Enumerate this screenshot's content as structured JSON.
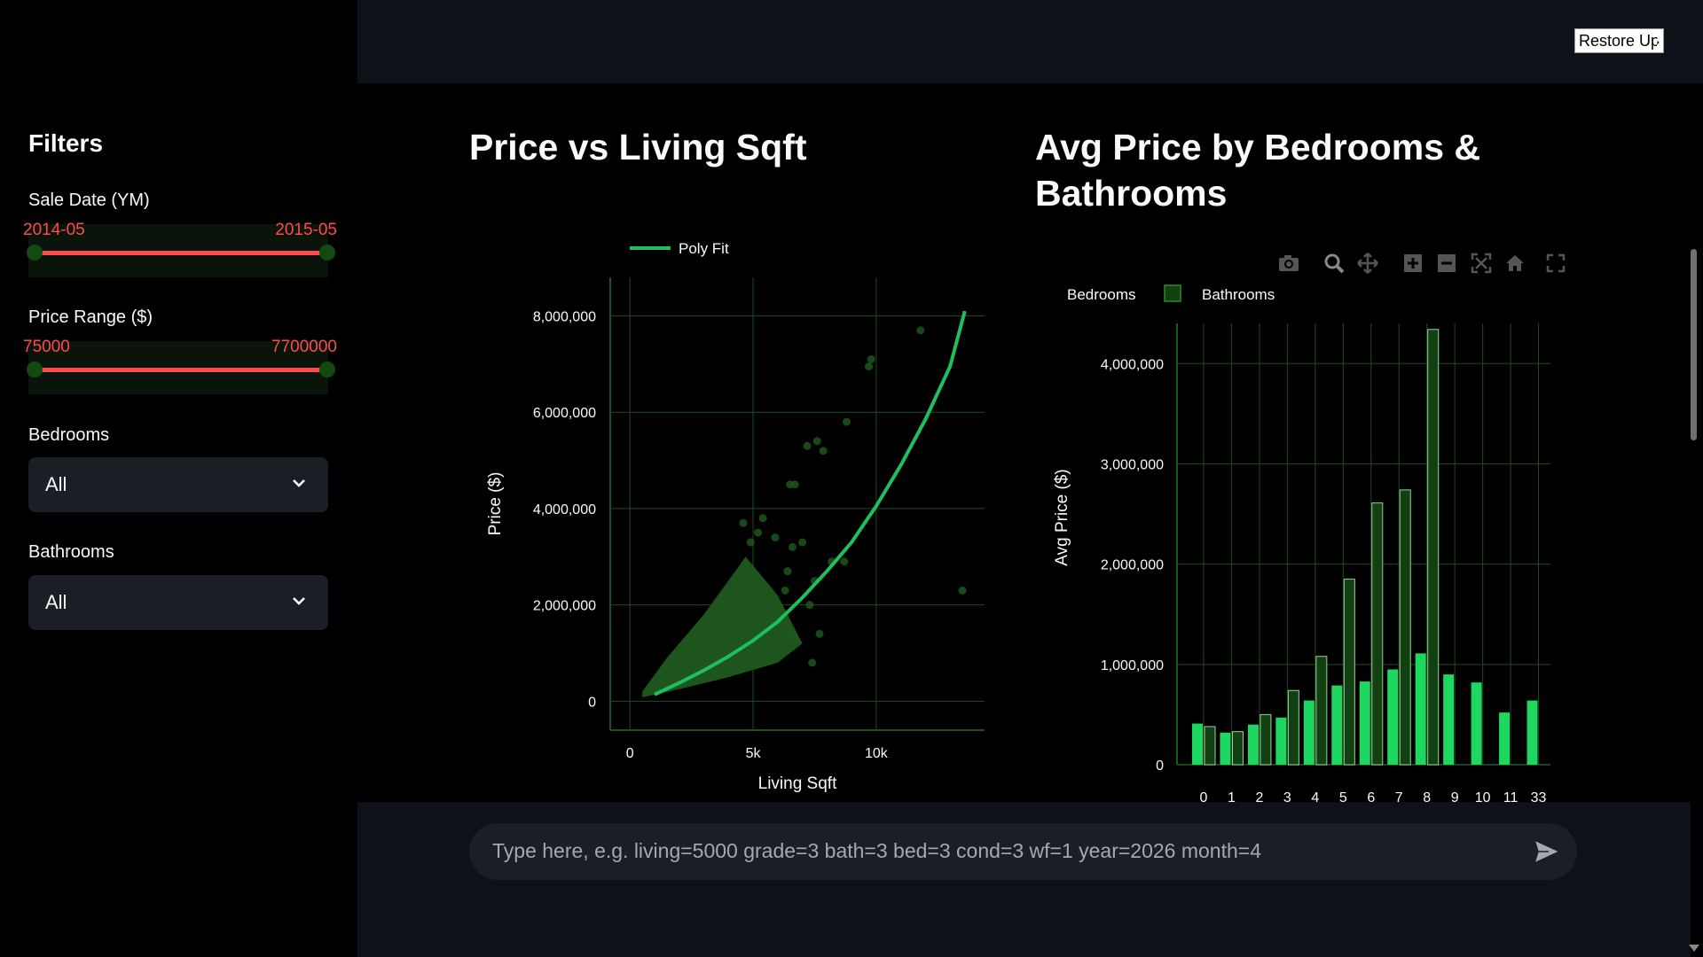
{
  "header": {
    "restore_label": "Restore Up"
  },
  "sidebar": {
    "title": "Filters",
    "sale_date": {
      "label": "Sale Date (YM)",
      "min": "2014-05",
      "max": "2015-05"
    },
    "price_range": {
      "label": "Price Range ($)",
      "min": "75000",
      "max": "7700000"
    },
    "bedrooms": {
      "label": "Bedrooms",
      "value": "All"
    },
    "bathrooms": {
      "label": "Bathrooms",
      "value": "All"
    }
  },
  "chat": {
    "placeholder": "Type here, e.g. living=5000 grade=3 bath=3 bed=3 cond=3 wf=1 year=2026 month=4"
  },
  "chart_data": [
    {
      "type": "scatter",
      "title": "Price vs Living Sqft",
      "xlabel": "Living Sqft",
      "ylabel": "Price ($)",
      "legend": [
        "Poly Fit"
      ],
      "legend_position": "top-left",
      "x_ticks": [
        "0",
        "5k",
        "10k"
      ],
      "y_ticks": [
        "0",
        "2,000,000",
        "4,000,000",
        "6,000,000",
        "8,000,000"
      ],
      "xlim": [
        -800,
        14400
      ],
      "ylim": [
        -600000,
        8800000
      ],
      "grid": true,
      "colors": {
        "points": "#1f5a1f",
        "fit": "#1fbf5f"
      },
      "poly_fit": {
        "x": [
          1000,
          2000,
          3000,
          4000,
          5000,
          6000,
          7000,
          8000,
          9000,
          10000,
          11000,
          12000,
          13000,
          13600
        ],
        "y": [
          140000,
          380000,
          640000,
          930000,
          1260000,
          1650000,
          2150000,
          2700000,
          3300000,
          4050000,
          4900000,
          5850000,
          6950000,
          8100000
        ]
      },
      "scatter_points": [
        [
          9800,
          7100000
        ],
        [
          9700,
          6950000
        ],
        [
          11800,
          7700000
        ],
        [
          8800,
          5800000
        ],
        [
          7600,
          5400000
        ],
        [
          7850,
          5200000
        ],
        [
          7200,
          5300000
        ],
        [
          6500,
          4500000
        ],
        [
          6700,
          4500000
        ],
        [
          5400,
          3800000
        ],
        [
          5200,
          3500000
        ],
        [
          7000,
          3300000
        ],
        [
          6600,
          3200000
        ],
        [
          8200,
          2900000
        ],
        [
          8700,
          2900000
        ],
        [
          13500,
          2300000
        ],
        [
          7500,
          2500000
        ],
        [
          6400,
          2700000
        ],
        [
          7300,
          2000000
        ],
        [
          7700,
          1400000
        ],
        [
          7400,
          800000
        ],
        [
          6600,
          1400000
        ],
        [
          6300,
          2300000
        ],
        [
          4900,
          3300000
        ],
        [
          4600,
          3700000
        ],
        [
          5900,
          3400000
        ]
      ],
      "scatter_cloud": {
        "polygon": [
          [
            500,
            80000
          ],
          [
            2000,
            250000
          ],
          [
            4000,
            500000
          ],
          [
            6000,
            800000
          ],
          [
            7000,
            1200000
          ],
          [
            6000,
            2200000
          ],
          [
            4700,
            3000000
          ],
          [
            3000,
            1800000
          ],
          [
            1500,
            900000
          ],
          [
            500,
            200000
          ]
        ]
      }
    },
    {
      "type": "bar",
      "title": "Avg Price by Bedrooms & Bathrooms",
      "ylabel": "Avg Price ($)",
      "categories": [
        "0",
        "1",
        "2",
        "3",
        "4",
        "5",
        "6",
        "7",
        "8",
        "9",
        "10",
        "11",
        "33"
      ],
      "y_ticks": [
        "0",
        "1,000,000",
        "2,000,000",
        "3,000,000",
        "4,000,000"
      ],
      "ylim": [
        0,
        4400000
      ],
      "grid": true,
      "legend_position": "top",
      "series": [
        {
          "name": "Bedrooms",
          "color": "#1ed760",
          "values": [
            410000,
            320000,
            400000,
            470000,
            640000,
            790000,
            830000,
            950000,
            1110000,
            900000,
            820000,
            520000,
            640000
          ]
        },
        {
          "name": "Bathrooms",
          "color": "#124012",
          "values": [
            380000,
            330000,
            500000,
            740000,
            1080000,
            1850000,
            2610000,
            2740000,
            4340000,
            null,
            null,
            null,
            null
          ]
        }
      ]
    }
  ]
}
